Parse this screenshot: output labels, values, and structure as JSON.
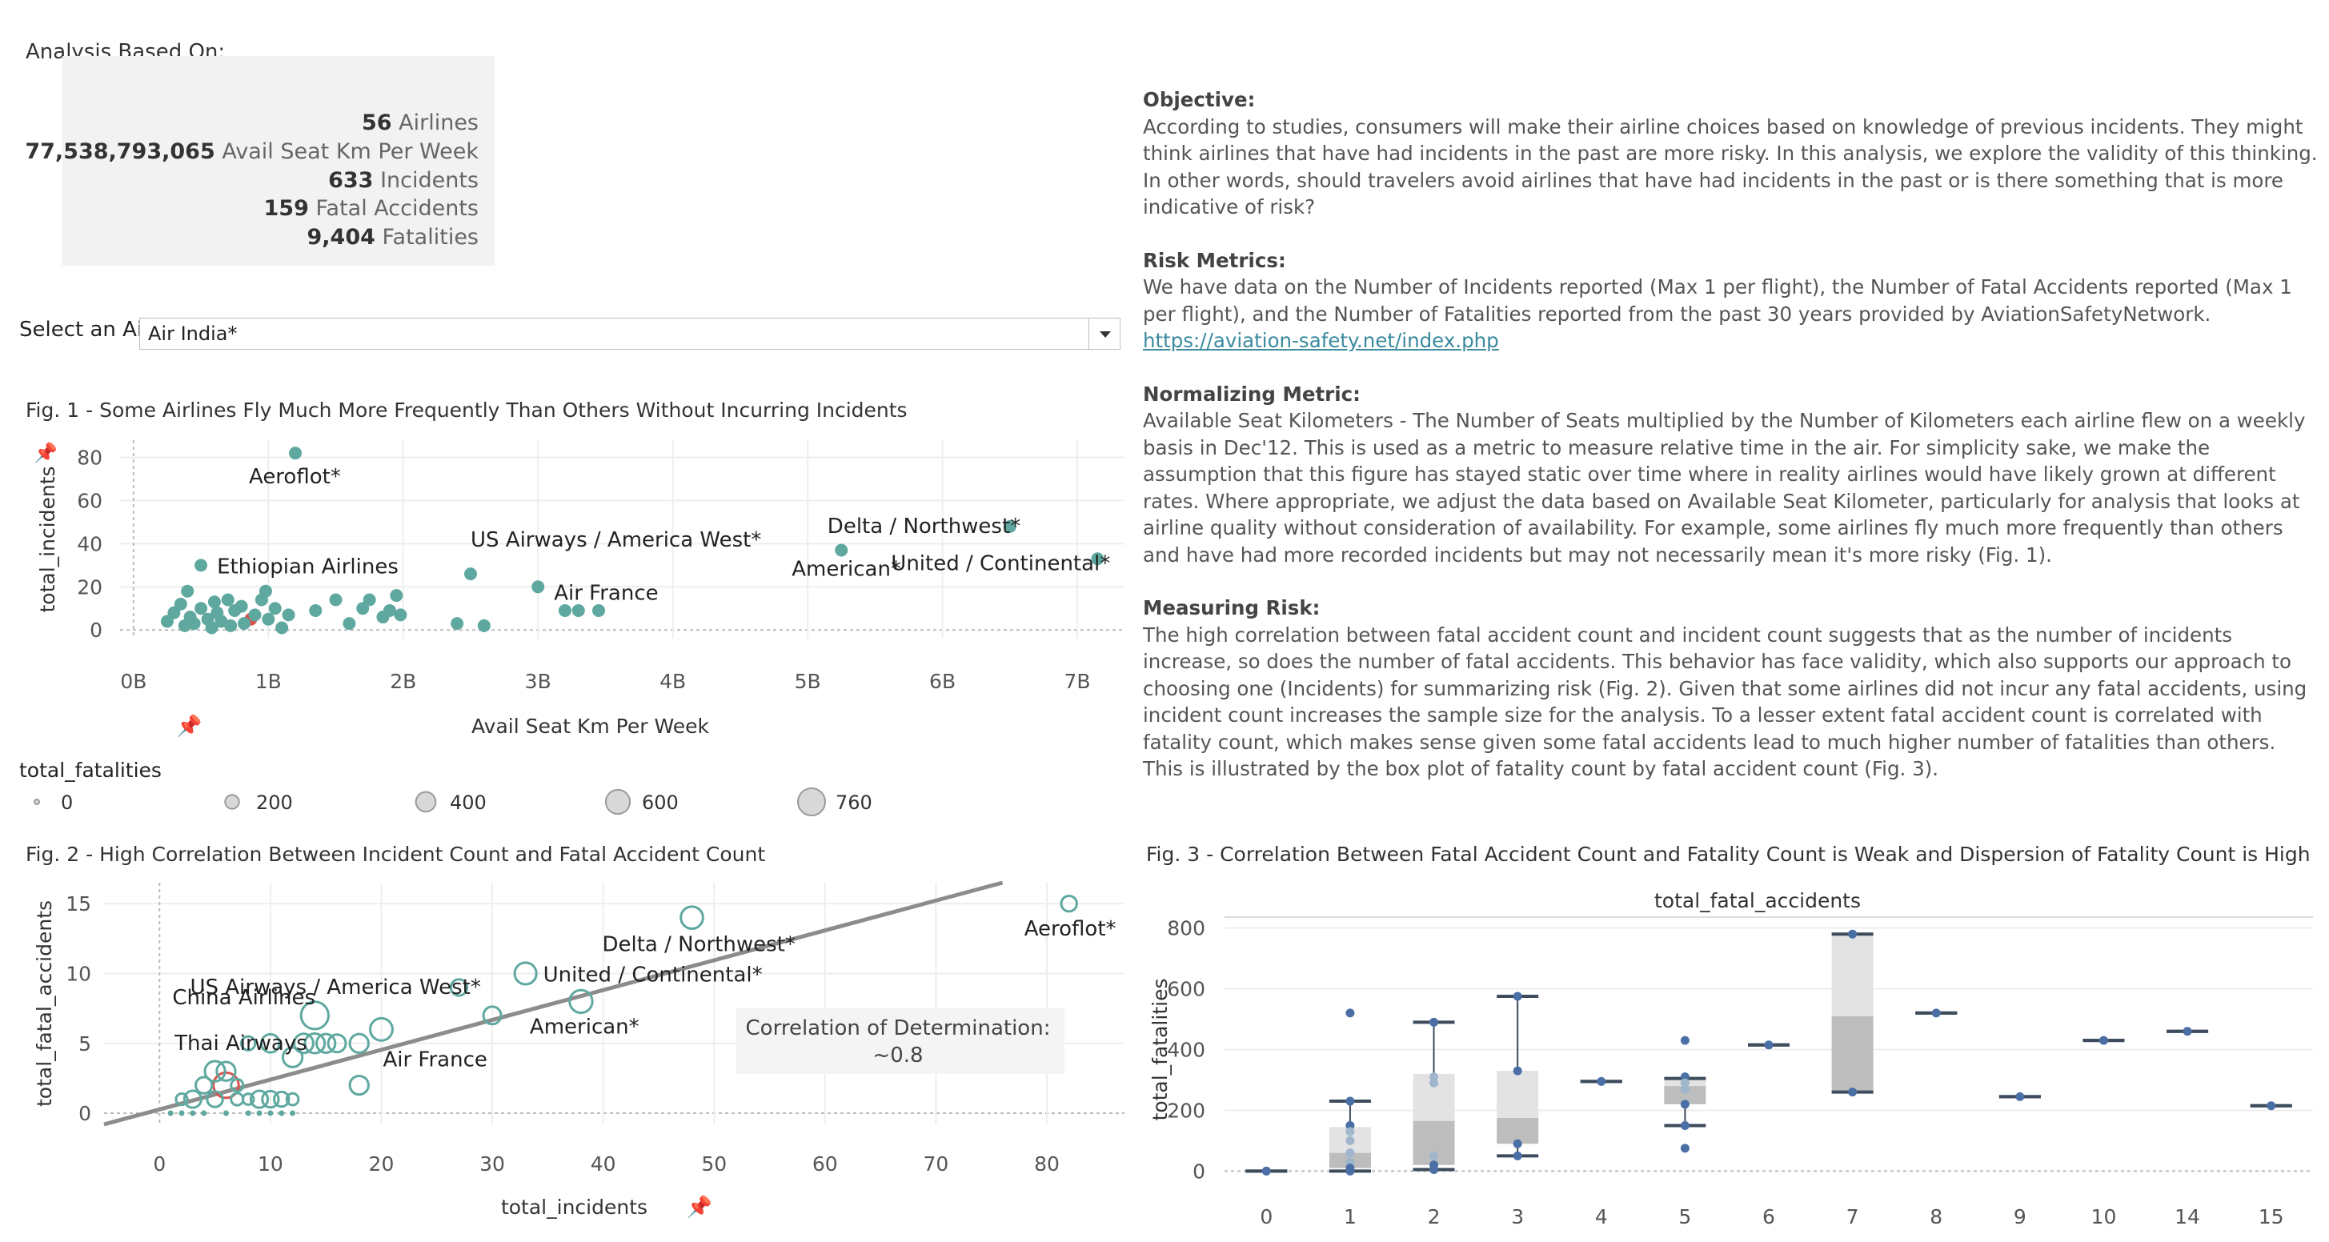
{
  "header": {
    "analysis_label": "Analysis Based On:"
  },
  "summary": [
    {
      "value": "56",
      "label": "Airlines"
    },
    {
      "value": "77,538,793,065",
      "label": "Avail Seat Km Per Week"
    },
    {
      "value": "633",
      "label": "Incidents"
    },
    {
      "value": "159",
      "label": "Fatal Accidents"
    },
    {
      "value": "9,404",
      "label": "Fatalities"
    }
  ],
  "filter": {
    "label": "Select an Ai..",
    "selected": "Air India*"
  },
  "text_panel": {
    "objective_title": "Objective:",
    "objective_body": "According to studies, consumers will make their airline choices based on knowledge of previous incidents. They might think airlines that have had incidents in the past are more risky. In this analysis, we  explore the validity of this thinking. In other words, should travelers avoid airlines that have had incidents in the past or is there something that is more indicative of risk?",
    "risk_title": "Risk Metrics:",
    "risk_body": "We have data on the Number of Incidents reported (Max 1 per flight), the Number of Fatal Accidents reported (Max 1 per flight), and the Number of Fatalities reported from the past 30 years provided by AviationSafetyNetwork.",
    "risk_link": "https://aviation-safety.net/index.php",
    "norm_title": "Normalizing Metric:",
    "norm_body": "Available Seat Kilometers - The Number of Seats multiplied by the Number of Kilometers each airline flew on a weekly basis in Dec'12. This is used as a metric to measure relative time in the air. For simplicity sake, we make the assumption that this figure has stayed static over time where in reality airlines would have likely grown at different rates. Where appropriate, we adjust the data based on Available Seat Kilometer, particularly for analysis that looks at airline quality without consideration of availability. For example, some airlines fly much more frequently than others and have had more recorded incidents but may not necessarily mean it's more risky (Fig. 1).",
    "measure_title": "Measuring Risk:",
    "measure_body": "The high correlation between fatal accident count and incident count suggests that as the number of incidents increase, so does the number of fatal accidents. This behavior has face validity, which also supports our approach to choosing one (Incidents) for summarizing risk (Fig. 2). Given that some airlines did not incur any fatal accidents, using incident count increases the sample size for the analysis. To a lesser extent fatal accident count is correlated with fatality count, which makes sense given some fatal accidents lead to much higher number of fatalities than others. This is illustrated by the box plot of fatality count by fatal accident count (Fig. 3)."
  },
  "legend": {
    "title": "total_fatalities",
    "items": [
      {
        "label": "0",
        "value": 0
      },
      {
        "label": "200",
        "value": 200
      },
      {
        "label": "400",
        "value": 400
      },
      {
        "label": "600",
        "value": 600
      },
      {
        "label": "760",
        "value": 760
      }
    ]
  },
  "colors": {
    "teal": "#5fa8a0",
    "highlight": "#d9534f",
    "trend": "#8c8c8c",
    "box_dark": "#bdbdbd",
    "box_light": "#e3e3e3",
    "blue_point": "#4a6fa5",
    "whisker": "#3d4b5c"
  },
  "chart_data": [
    {
      "id": "fig1",
      "type": "scatter",
      "title": "Fig. 1 - Some Airlines Fly Much More Frequently Than Others Without Incurring Incidents",
      "xlabel": "Avail Seat Km Per Week",
      "ylabel": "total_incidents",
      "xlim": [
        -0.1,
        7.35
      ],
      "ylim": [
        -4,
        88
      ],
      "x_unit": "billions",
      "xticks": [
        0,
        1,
        2,
        3,
        4,
        5,
        6,
        7
      ],
      "xtick_labels": [
        "0B",
        "1B",
        "2B",
        "3B",
        "4B",
        "5B",
        "6B",
        "7B"
      ],
      "yticks": [
        0,
        20,
        40,
        60,
        80
      ],
      "points": [
        {
          "x": 1.2,
          "y": 82,
          "label": "Aeroflot*"
        },
        {
          "x": 6.5,
          "y": 48,
          "label": "Delta / Northwest*"
        },
        {
          "x": 5.25,
          "y": 37,
          "label": "American*"
        },
        {
          "x": 7.15,
          "y": 33,
          "label": "United / Continental*"
        },
        {
          "x": 2.5,
          "y": 26,
          "label": "US Airways / America West*"
        },
        {
          "x": 0.5,
          "y": 30,
          "label": "Ethiopian Airlines"
        },
        {
          "x": 3.0,
          "y": 20,
          "label": "Air France"
        },
        {
          "x": 0.87,
          "y": 5,
          "label": "",
          "highlight": true
        },
        {
          "x": 0.25,
          "y": 4
        },
        {
          "x": 0.3,
          "y": 8
        },
        {
          "x": 0.35,
          "y": 12
        },
        {
          "x": 0.38,
          "y": 2
        },
        {
          "x": 0.4,
          "y": 18
        },
        {
          "x": 0.42,
          "y": 6
        },
        {
          "x": 0.45,
          "y": 3
        },
        {
          "x": 0.5,
          "y": 10
        },
        {
          "x": 0.55,
          "y": 5
        },
        {
          "x": 0.58,
          "y": 1
        },
        {
          "x": 0.6,
          "y": 13
        },
        {
          "x": 0.62,
          "y": 8
        },
        {
          "x": 0.65,
          "y": 4
        },
        {
          "x": 0.7,
          "y": 14
        },
        {
          "x": 0.72,
          "y": 2
        },
        {
          "x": 0.75,
          "y": 9
        },
        {
          "x": 0.8,
          "y": 11
        },
        {
          "x": 0.82,
          "y": 3
        },
        {
          "x": 0.9,
          "y": 7
        },
        {
          "x": 0.95,
          "y": 14
        },
        {
          "x": 0.98,
          "y": 18
        },
        {
          "x": 1.0,
          "y": 5
        },
        {
          "x": 1.05,
          "y": 10
        },
        {
          "x": 1.1,
          "y": 1
        },
        {
          "x": 1.15,
          "y": 7
        },
        {
          "x": 1.35,
          "y": 9
        },
        {
          "x": 1.5,
          "y": 14
        },
        {
          "x": 1.6,
          "y": 3
        },
        {
          "x": 1.7,
          "y": 10
        },
        {
          "x": 1.75,
          "y": 14
        },
        {
          "x": 1.85,
          "y": 6
        },
        {
          "x": 1.9,
          "y": 9
        },
        {
          "x": 1.95,
          "y": 16
        },
        {
          "x": 1.98,
          "y": 7
        },
        {
          "x": 2.4,
          "y": 3
        },
        {
          "x": 2.6,
          "y": 2
        },
        {
          "x": 3.2,
          "y": 9
        },
        {
          "x": 3.3,
          "y": 9
        },
        {
          "x": 3.45,
          "y": 9
        }
      ]
    },
    {
      "id": "fig2",
      "type": "scatter",
      "title": "Fig. 2 - High Correlation Between Incident Count and Fatal Accident Count",
      "xlabel": "total_incidents",
      "ylabel": "total_fatal_accidents",
      "xlim": [
        -5,
        87
      ],
      "ylim": [
        -0.8,
        16.5
      ],
      "xticks": [
        0,
        10,
        20,
        30,
        40,
        50,
        60,
        70,
        80
      ],
      "yticks": [
        0,
        5,
        10,
        15
      ],
      "annotation": "Correlation of Determination:\n~0.8",
      "trendline": {
        "x0": -5,
        "y0": -0.8,
        "x1": 76,
        "y1": 16.5
      },
      "points": [
        {
          "x": 82,
          "y": 15,
          "fat": 100,
          "label": "Aeroflot*"
        },
        {
          "x": 48,
          "y": 14,
          "fat": 350,
          "label": "Delta / Northwest*"
        },
        {
          "x": 33,
          "y": 10,
          "fat": 330,
          "label": "United / Continental*"
        },
        {
          "x": 27,
          "y": 9,
          "fat": 120,
          "label": "US Airways / America West*"
        },
        {
          "x": 38,
          "y": 8,
          "fat": 380,
          "label": "American*"
        },
        {
          "x": 14,
          "y": 7,
          "fat": 660,
          "label": "China Airlines"
        },
        {
          "x": 20,
          "y": 6,
          "fat": 360,
          "label": "Air France"
        },
        {
          "x": 8,
          "y": 5,
          "fat": 60,
          "label": "Thai Airways"
        },
        {
          "x": 6,
          "y": 2,
          "fat": 520,
          "highlight": true
        },
        {
          "x": 30,
          "y": 7,
          "fat": 160
        },
        {
          "x": 18,
          "y": 5,
          "fat": 200
        },
        {
          "x": 18,
          "y": 2,
          "fat": 200
        },
        {
          "x": 10,
          "y": 5,
          "fat": 180
        },
        {
          "x": 13,
          "y": 5,
          "fat": 220
        },
        {
          "x": 14,
          "y": 5,
          "fat": 240
        },
        {
          "x": 15,
          "y": 5,
          "fat": 200
        },
        {
          "x": 16,
          "y": 5,
          "fat": 160
        },
        {
          "x": 12,
          "y": 4,
          "fat": 230
        },
        {
          "x": 5,
          "y": 3,
          "fat": 260
        },
        {
          "x": 6,
          "y": 3,
          "fat": 200
        },
        {
          "x": 4,
          "y": 2,
          "fat": 120
        },
        {
          "x": 3,
          "y": 1,
          "fat": 140
        },
        {
          "x": 5,
          "y": 1,
          "fat": 100
        },
        {
          "x": 9,
          "y": 1,
          "fat": 140
        },
        {
          "x": 10,
          "y": 1,
          "fat": 120
        },
        {
          "x": 11,
          "y": 1,
          "fat": 80
        },
        {
          "x": 7,
          "y": 2,
          "fat": 30
        },
        {
          "x": 1,
          "y": 0,
          "fat": 0
        },
        {
          "x": 2,
          "y": 0,
          "fat": 0
        },
        {
          "x": 3,
          "y": 0,
          "fat": 0
        },
        {
          "x": 4,
          "y": 0,
          "fat": 0
        },
        {
          "x": 6,
          "y": 0,
          "fat": 0
        },
        {
          "x": 8,
          "y": 0,
          "fat": 0
        },
        {
          "x": 9,
          "y": 0,
          "fat": 0
        },
        {
          "x": 10,
          "y": 0,
          "fat": 0
        },
        {
          "x": 11,
          "y": 0,
          "fat": 0
        },
        {
          "x": 12,
          "y": 0,
          "fat": 0
        },
        {
          "x": 2,
          "y": 1,
          "fat": 20
        },
        {
          "x": 7,
          "y": 1,
          "fat": 30
        },
        {
          "x": 12,
          "y": 1,
          "fat": 25
        },
        {
          "x": 8,
          "y": 1,
          "fat": 15
        }
      ]
    },
    {
      "id": "fig3",
      "type": "box",
      "title": "Fig. 3 - Correlation Between Fatal Accident Count and Fatality Count is Weak and Dispersion of Fatality Count is High",
      "top_axis_label": "total_fatal_accidents",
      "ylabel": "total_fatalities",
      "ylim": [
        -20,
        820
      ],
      "yticks": [
        0,
        200,
        400,
        600,
        800
      ],
      "categories": [
        "0",
        "1",
        "2",
        "3",
        "4",
        "5",
        "6",
        "7",
        "8",
        "9",
        "10",
        "14",
        "15"
      ],
      "boxes": [
        {
          "cat": "0",
          "min": 0,
          "q1": 0,
          "median": 0,
          "q3": 0,
          "max": 0
        },
        {
          "cat": "1",
          "min": 0,
          "q1": 10,
          "median": 60,
          "q3": 145,
          "max": 230,
          "outliers": [
            520
          ]
        },
        {
          "cat": "2",
          "min": 5,
          "q1": 20,
          "median": 165,
          "q3": 320,
          "max": 490
        },
        {
          "cat": "3",
          "min": 50,
          "q1": 90,
          "median": 175,
          "q3": 330,
          "max": 575
        },
        {
          "cat": "4",
          "min": 295,
          "q1": 295,
          "median": 295,
          "q3": 295,
          "max": 295
        },
        {
          "cat": "5",
          "min": 150,
          "q1": 220,
          "median": 280,
          "q3": 305,
          "max": 305,
          "outliers": [
            430,
            75
          ]
        },
        {
          "cat": "6",
          "min": 415,
          "q1": 415,
          "median": 415,
          "q3": 415,
          "max": 415
        },
        {
          "cat": "7",
          "min": 260,
          "q1": 260,
          "median": 510,
          "q3": 780,
          "max": 780
        },
        {
          "cat": "8",
          "min": 520,
          "q1": 520,
          "median": 520,
          "q3": 520,
          "max": 520
        },
        {
          "cat": "9",
          "min": 245,
          "q1": 245,
          "median": 245,
          "q3": 245,
          "max": 245
        },
        {
          "cat": "10",
          "min": 430,
          "q1": 430,
          "median": 430,
          "q3": 430,
          "max": 430
        },
        {
          "cat": "14",
          "min": 460,
          "q1": 460,
          "median": 460,
          "q3": 460,
          "max": 460
        },
        {
          "cat": "15",
          "min": 215,
          "q1": 215,
          "median": 215,
          "q3": 215,
          "max": 215
        }
      ],
      "points": [
        {
          "cat": "0",
          "y": 0
        },
        {
          "cat": "0",
          "y": 0
        },
        {
          "cat": "1",
          "y": 520
        },
        {
          "cat": "1",
          "y": 230
        },
        {
          "cat": "1",
          "y": 150
        },
        {
          "cat": "1",
          "y": 130
        },
        {
          "cat": "1",
          "y": 100
        },
        {
          "cat": "1",
          "y": 60
        },
        {
          "cat": "1",
          "y": 30
        },
        {
          "cat": "1",
          "y": 10
        },
        {
          "cat": "1",
          "y": 0
        },
        {
          "cat": "2",
          "y": 490
        },
        {
          "cat": "2",
          "y": 310
        },
        {
          "cat": "2",
          "y": 290
        },
        {
          "cat": "2",
          "y": 50
        },
        {
          "cat": "2",
          "y": 20
        },
        {
          "cat": "2",
          "y": 5
        },
        {
          "cat": "3",
          "y": 575
        },
        {
          "cat": "3",
          "y": 330
        },
        {
          "cat": "3",
          "y": 90
        },
        {
          "cat": "3",
          "y": 50
        },
        {
          "cat": "4",
          "y": 295
        },
        {
          "cat": "5",
          "y": 430
        },
        {
          "cat": "5",
          "y": 310
        },
        {
          "cat": "5",
          "y": 290
        },
        {
          "cat": "5",
          "y": 270
        },
        {
          "cat": "5",
          "y": 220
        },
        {
          "cat": "5",
          "y": 150
        },
        {
          "cat": "5",
          "y": 75
        },
        {
          "cat": "6",
          "y": 415
        },
        {
          "cat": "7",
          "y": 780
        },
        {
          "cat": "7",
          "y": 260
        },
        {
          "cat": "8",
          "y": 520
        },
        {
          "cat": "9",
          "y": 245
        },
        {
          "cat": "10",
          "y": 430
        },
        {
          "cat": "14",
          "y": 460
        },
        {
          "cat": "15",
          "y": 215
        }
      ]
    }
  ]
}
